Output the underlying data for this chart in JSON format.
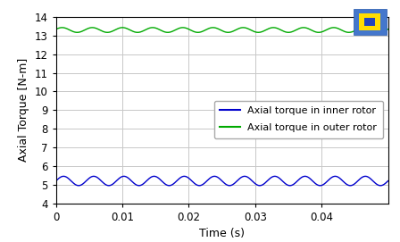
{
  "title": "",
  "xlabel": "Time (s)",
  "ylabel": "Axial Torque [N-m]",
  "xlim": [
    0,
    0.05
  ],
  "ylim": [
    4,
    14
  ],
  "yticks": [
    4,
    5,
    6,
    7,
    8,
    9,
    10,
    11,
    12,
    13,
    14
  ],
  "xticks": [
    0,
    0.01,
    0.02,
    0.03,
    0.04
  ],
  "xtick_labels": [
    "0",
    "0.01",
    "0.02",
    "0.03",
    "0.04"
  ],
  "inner_color": "#0000cc",
  "outer_color": "#00aa00",
  "inner_mean": 5.2,
  "inner_amp": 0.25,
  "inner_freq": 220,
  "outer_mean": 13.3,
  "outer_amp": 0.13,
  "outer_freq": 220,
  "legend_inner": "Axial torque in inner rotor",
  "legend_outer": "Axial torque in outer rotor",
  "background_color": "#ffffff",
  "grid_color": "#c8c8c8",
  "figsize": [
    4.48,
    2.71
  ],
  "dpi": 100
}
